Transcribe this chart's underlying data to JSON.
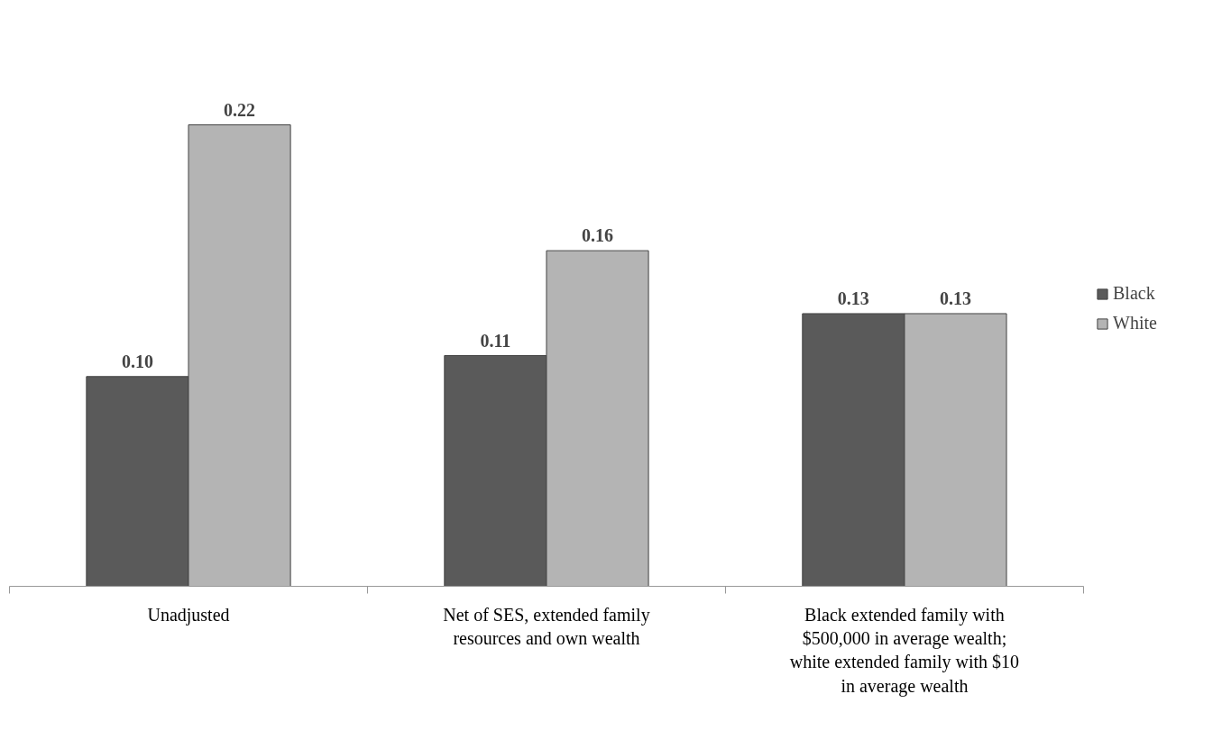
{
  "chart_data": {
    "type": "bar",
    "categories": [
      "Unadjusted",
      "Net of SES, extended family resources and own wealth",
      "Black extended family with $500,000 in average wealth; white extended family with $10 in average wealth"
    ],
    "series": [
      {
        "name": "Black",
        "color": "#5a5a5a",
        "values": [
          0.1,
          0.11,
          0.13
        ],
        "value_labels": [
          "0.10",
          "0.11",
          "0.13"
        ]
      },
      {
        "name": "White",
        "color": "#b4b4b4",
        "values": [
          0.22,
          0.16,
          0.13
        ],
        "value_labels": [
          "0.22",
          "0.16",
          "0.13"
        ]
      }
    ],
    "legend": "right",
    "grid": false
  }
}
